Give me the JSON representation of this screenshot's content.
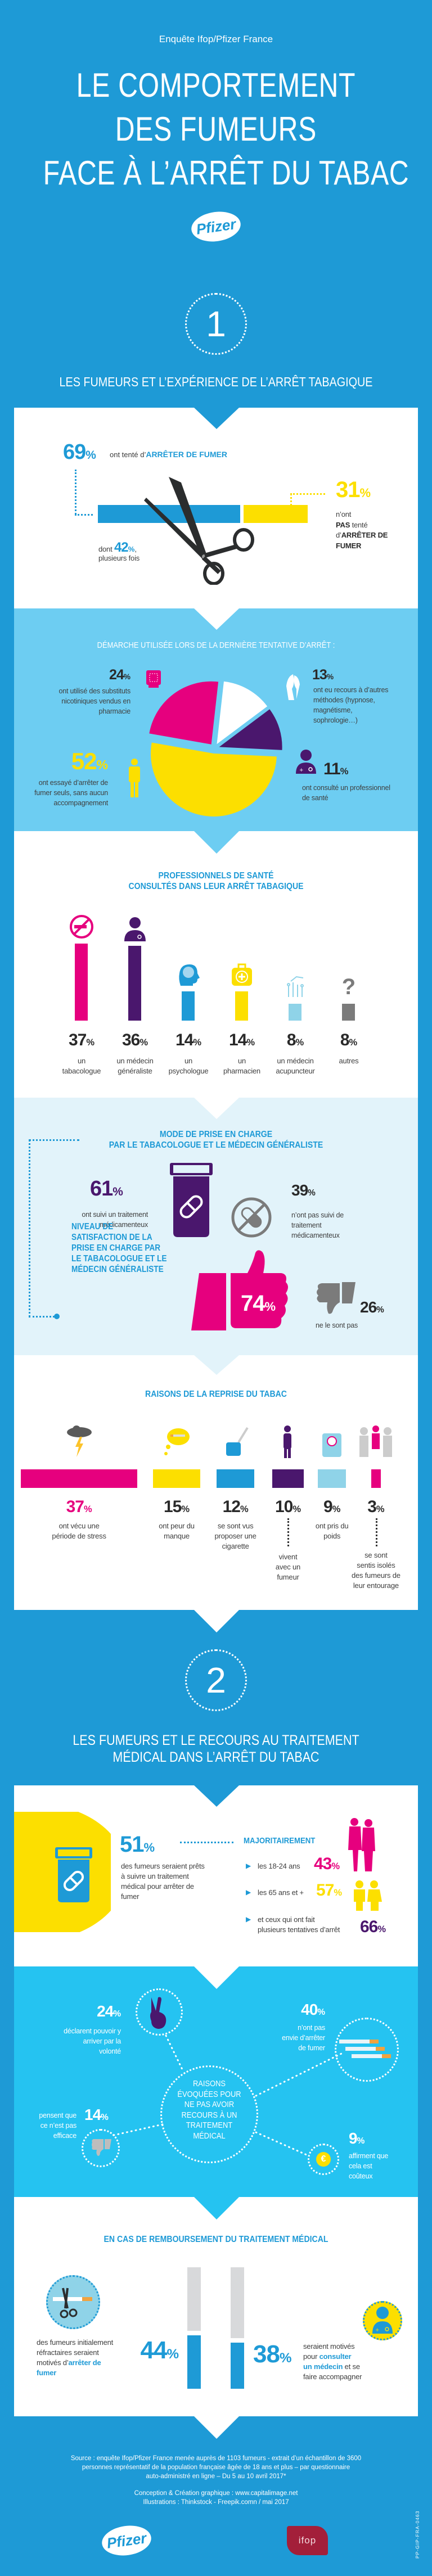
{
  "ui": {
    "percent_sign": "%"
  },
  "header": {
    "survey": "Enquête Ifop/Pfizer France",
    "title_lines": [
      "LE COMPORTEMENT",
      "DES FUMEURS",
      "FACE À L’ARRÊT DU TABAC"
    ],
    "brand": "Pfizer"
  },
  "section1": {
    "number": "1",
    "title": "LES FUMEURS ET L’EXPÉRIENCE DE L’ARRÊT TABAGIQUE"
  },
  "attempt": {
    "tried": {
      "value": 69,
      "label": "69",
      "text": "ont tenté d’",
      "emph": "ARRÊTER DE FUMER"
    },
    "several": {
      "prefix": "dont",
      "label": "42",
      "suffix": ",",
      "text": "plusieurs fois"
    },
    "not_tried": {
      "value": 31,
      "label": "31",
      "line1": "n’ont",
      "line2_bold": "PAS",
      "line2": " tenté",
      "line3_pre": "d’",
      "line3_bold": "ARRÊTER DE",
      "line4_bold": "FUMER"
    }
  },
  "method": {
    "title": "DÉMARCHE UTILISÉE LORS DE LA DERNIÈRE TENTATIVE D’ARRÊT :",
    "items": [
      {
        "label": "24",
        "value": 24,
        "lines": [
          "ont utilisé des substituts",
          "nicotiniques vendus en",
          "pharmacie"
        ],
        "color": "#e6007e",
        "icon": "nicotine-patch-icon"
      },
      {
        "label": "13",
        "value": 13,
        "lines": [
          "ont eu recours à d’autres",
          "méthodes (hypnose,",
          "magnétisme,",
          "sophrologie…)"
        ],
        "color": "#ffffff",
        "icon": "hands-icon"
      },
      {
        "label": "11",
        "value": 11,
        "lines": [
          "ont consulté un professionnel",
          "de santé"
        ],
        "color": "#4a176d",
        "icon": "doctor-icon"
      },
      {
        "label": "52",
        "value": 52,
        "lines": [
          "ont essayé d’arrêter de",
          "fumer seuls, sans aucun",
          "accompagnement"
        ],
        "color": "#fcdf00",
        "icon": "person-icon"
      }
    ]
  },
  "professionals": {
    "title_lines": [
      "PROFESSIONNELS DE SANTÉ",
      "CONSULTÉS DANS LEUR ARRÊT TABAGIQUE"
    ],
    "items": [
      {
        "value": 37,
        "label": "37",
        "lines": [
          "un",
          "tabacologue"
        ],
        "color": "#e6007e",
        "icon": "no-smoking-icon"
      },
      {
        "value": 36,
        "label": "36",
        "lines": [
          "un médecin",
          "généraliste"
        ],
        "color": "#4a176d",
        "icon": "doctor-icon"
      },
      {
        "value": 14,
        "label": "14",
        "lines": [
          "un",
          "psychologue"
        ],
        "color": "#1e9ad6",
        "icon": "brain-head-icon"
      },
      {
        "value": 14,
        "label": "14",
        "lines": [
          "un",
          "pharmacien"
        ],
        "color": "#fcdf00",
        "icon": "first-aid-kit-icon"
      },
      {
        "value": 8,
        "label": "8",
        "lines": [
          "un médecin",
          "acupuncteur"
        ],
        "color": "#8fd3e8",
        "icon": "acupuncture-icon"
      },
      {
        "value": 8,
        "label": "8",
        "lines": [
          "autres"
        ],
        "color": "#7b7b7b",
        "icon": "question-mark-icon"
      }
    ]
  },
  "care": {
    "title_lines": [
      "MODE DE PRISE EN CHARGE",
      "PAR LE TABACOLOGUE ET LE MÉDECIN GÉNÉRALISTE"
    ],
    "treated": {
      "label": "61",
      "lines": [
        "ont suivi un traitement",
        "médicamenteux"
      ]
    },
    "not_treated": {
      "label": "39",
      "lines": [
        "n’ont pas suivi de",
        "traitement",
        "médicamenteux"
      ]
    },
    "satisfaction_lines": [
      "NIVEAU DE",
      "SATISFACTION DE LA",
      "PRISE EN CHARGE PAR",
      "LE TABACOLOGUE ET LE",
      "MÉDECIN GÉNÉRALISTE"
    ],
    "satisfied": {
      "label": "74",
      "value": 74
    },
    "unsatisfied": {
      "label": "26",
      "value": 26,
      "text": "ne le sont pas"
    }
  },
  "relapse": {
    "title": "RAISONS DE LA REPRISE DU TABAC",
    "items": [
      {
        "value": 37,
        "label": "37",
        "lines": [
          "ont vécu une",
          "période de stress"
        ],
        "color": "#e6007e",
        "icon": "storm-cloud-icon"
      },
      {
        "value": 15,
        "label": "15",
        "lines": [
          "ont peur du",
          "manque"
        ],
        "color": "#fcdf00",
        "icon": "thought-cigarette-icon"
      },
      {
        "value": 12,
        "label": "12",
        "lines": [
          "se sont vus",
          "proposer une",
          "cigarette"
        ],
        "color": "#1e9ad6",
        "icon": "hand-cigarette-icon"
      },
      {
        "value": 10,
        "label": "10",
        "lines": [
          "vivent",
          "avec un",
          "fumeur"
        ],
        "color": "#4a176d",
        "icon": "smoker-icon"
      },
      {
        "value": 9,
        "label": "9",
        "lines": [
          "ont pris du",
          "poids"
        ],
        "color": "#8fd3e8",
        "icon": "scale-icon"
      },
      {
        "value": 3,
        "label": "3",
        "lines": [
          "se sont",
          "sentis isolés",
          "des fumeurs de",
          "leur entourage"
        ],
        "color": "#e6007e",
        "icon": "isolated-person-icon"
      }
    ]
  },
  "section2": {
    "number": "2",
    "title_lines": [
      "LES FUMEURS ET LE RECOURS AU TRAITEMENT",
      "MÉDICAL DANS L’ARRÊT DU TABAC"
    ]
  },
  "ready": {
    "label": "51",
    "lines": [
      "des fumeurs seraient prêts",
      "à suivre un traitement",
      "médical pour arrêter de",
      "fumer"
    ],
    "mostly": "MAJORITAIREMENT",
    "groups": [
      {
        "text": "les 18-24 ans",
        "label": "43",
        "color": "#e6007e"
      },
      {
        "text": "les 65 ans et +",
        "label": "57",
        "color": "#fcdf00"
      },
      {
        "text": "et ceux qui ont fait",
        "text2": "plusieurs tentatives d’arrêt",
        "label": "66",
        "color": "#4a176d"
      }
    ]
  },
  "reasons": {
    "center_lines": [
      "RAISONS",
      "ÉVOQUÉES POUR",
      "NE PAS AVOIR",
      "RECOURS À UN",
      "TRAITEMENT",
      "MÉDICAL"
    ],
    "will": {
      "label": "24",
      "lines": [
        "déclarent pouvoir y",
        "arriver par la",
        "volonté"
      ]
    },
    "no_wish": {
      "label": "40",
      "lines": [
        "n’ont pas",
        "envie d’arrêter",
        "de fumer"
      ]
    },
    "ineffective": {
      "label": "14",
      "lines": [
        "pensent que",
        "ce n’est pas",
        "efficace"
      ]
    },
    "costly": {
      "label": "9",
      "lines": [
        "affirment que",
        "cela est",
        "coûteux"
      ]
    }
  },
  "reimbursement": {
    "title": "EN CAS DE REMBOURSEMENT DU TRAITEMENT MÉDICAL",
    "quit": {
      "value": 44,
      "label": "44",
      "line1": "des fumeurs initialement",
      "line2": "réfractaires seraient",
      "line3_pre": "motivés d’",
      "line3_emph": "arrêter de",
      "line4_emph": "fumer"
    },
    "consult": {
      "value": 38,
      "label": "38",
      "line1": "seraient motivés",
      "line2_pre": "pour ",
      "line2_emph": "consulter",
      "line3_emph": "un médecin",
      "line3_post": " et se",
      "line4": "faire accompagner"
    }
  },
  "footer": {
    "source_lines": [
      "Source : enquête Ifop/Pfizer France menée auprès de 1103 fumeurs - extrait d’un échantillon de 3600",
      "personnes représentatif de la population française âgée de 18 ans et plus – par questionnaire",
      "auto-administré en ligne – Du 5 au 10 avril 2017*"
    ],
    "credit_lines": [
      "Conception & Création graphique : www.capitalimage.net",
      "Illustrations : Thinkstock - Freepik.comn / mai 2017"
    ],
    "brand_left": "Pfizer",
    "brand_right": "ifop",
    "code": "PP-GIP-FRA-0463"
  },
  "colors": {
    "background": "#1e9ad6",
    "pink": "#e6007e",
    "purple": "#4a176d",
    "yellow": "#fcdf00",
    "light_blue": "#6dcdf2",
    "pale_blue": "#e2f3fa",
    "bright_blue": "#25c3f1",
    "gray": "#7b7b7b"
  }
}
